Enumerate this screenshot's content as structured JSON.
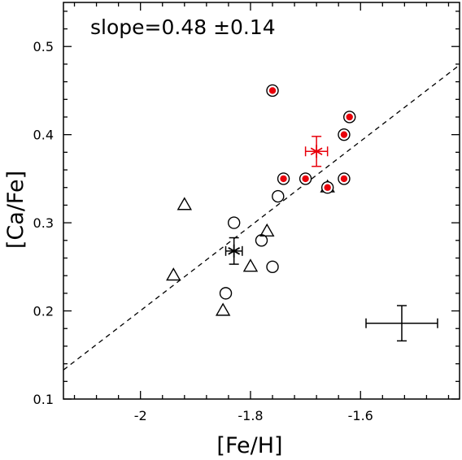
{
  "chart_data": {
    "type": "scatter",
    "title": "",
    "xlabel": "[Fe/H]",
    "ylabel": "[Ca/Fe]",
    "xlim": [
      -2.14,
      -1.42
    ],
    "ylim": [
      0.1,
      0.55
    ],
    "xticks": [
      -2.0,
      -1.8,
      -1.6
    ],
    "xtick_labels": [
      "-2",
      "-1.8",
      "-1.6"
    ],
    "yticks": [
      0.1,
      0.2,
      0.3,
      0.4,
      0.5
    ],
    "ytick_labels": [
      "0.1",
      "0.2",
      "0.3",
      "0.4",
      "0.5"
    ],
    "annotation": "slope=0.48  ±0.14",
    "grid": false,
    "fit_line": {
      "style": "dashed",
      "slope": 0.48,
      "points": [
        [
          -2.14,
          0.133
        ],
        [
          -1.42,
          0.479
        ]
      ]
    },
    "series": [
      {
        "marker": "open-circle",
        "points": [
          [
            -1.83,
            0.3
          ],
          [
            -1.845,
            0.22
          ],
          [
            -1.78,
            0.28
          ],
          [
            -1.75,
            0.33
          ],
          [
            -1.76,
            0.25
          ]
        ]
      },
      {
        "marker": "open-triangle",
        "points": [
          [
            -1.92,
            0.32
          ],
          [
            -1.94,
            0.24
          ],
          [
            -1.85,
            0.2
          ],
          [
            -1.8,
            0.25
          ],
          [
            -1.77,
            0.29
          ],
          [
            -1.66,
            0.34
          ]
        ]
      },
      {
        "marker": "red-filled-circle",
        "color": "#e8000b",
        "points": [
          [
            -1.76,
            0.45
          ],
          [
            -1.62,
            0.42
          ],
          [
            -1.63,
            0.4
          ],
          [
            -1.74,
            0.35
          ],
          [
            -1.7,
            0.35
          ],
          [
            -1.63,
            0.35
          ],
          [
            -1.66,
            0.34
          ]
        ]
      }
    ],
    "mean_points": [
      {
        "marker": "star",
        "color": "#000000",
        "x": -1.83,
        "y": 0.268,
        "xerr": 0.015,
        "yerr": 0.015
      },
      {
        "marker": "star",
        "color": "#e8000b",
        "x": -1.68,
        "y": 0.381,
        "xerr": 0.02,
        "yerr": 0.017
      }
    ],
    "typical_error_bar": {
      "x": -1.525,
      "y": 0.186,
      "xerr": 0.065,
      "yerr": 0.02
    }
  }
}
